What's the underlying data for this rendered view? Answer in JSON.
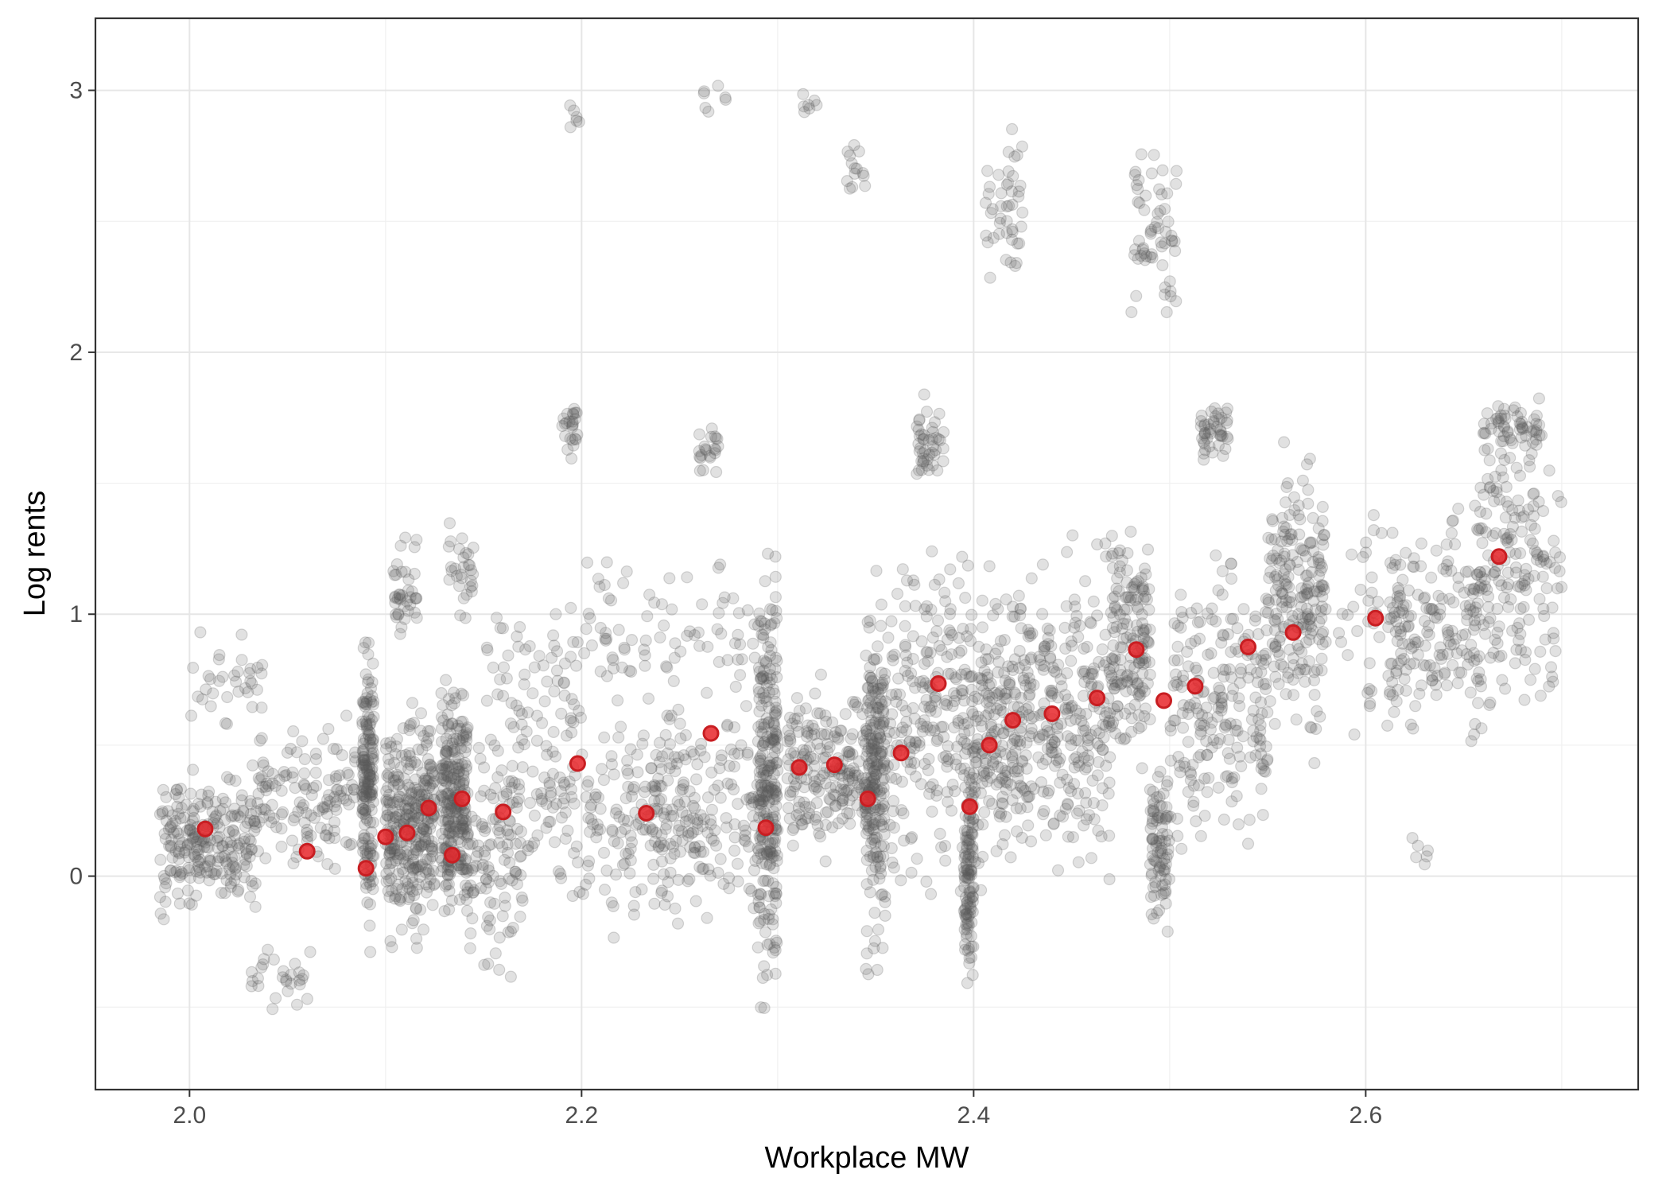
{
  "chart_data": {
    "type": "scatter",
    "title": "",
    "xlabel": "Workplace MW",
    "ylabel": "Log rents",
    "xlim": [
      1.952,
      2.739
    ],
    "ylim": [
      -0.815,
      3.275
    ],
    "x_ticks": [
      2.0,
      2.2,
      2.4,
      2.6
    ],
    "x_tick_labels": [
      "2.0",
      "2.2",
      "2.4",
      "2.6"
    ],
    "y_ticks": [
      0,
      1,
      2,
      3
    ],
    "y_tick_labels": [
      "0",
      "1",
      "2",
      "3"
    ],
    "grid": true,
    "theme": "bw",
    "series": [
      {
        "kind": "raw observations",
        "color": "#595959",
        "opacity": 0.18,
        "clusters": [
          {
            "x": [
              1.985,
              2.035
            ],
            "y": [
              -0.2,
              0.45
            ],
            "n": 240
          },
          {
            "x": [
              2.0,
              2.04
            ],
            "y": [
              0.5,
              1.0
            ],
            "n": 35
          },
          {
            "x": [
              2.035,
              2.085
            ],
            "y": [
              -0.05,
              0.65
            ],
            "n": 130
          },
          {
            "x": [
              2.03,
              2.065
            ],
            "y": [
              -0.55,
              -0.2
            ],
            "n": 28
          },
          {
            "x": [
              2.088,
              2.094
            ],
            "y": [
              -0.4,
              1.1
            ],
            "n": 180
          },
          {
            "x": [
              2.1,
              2.125
            ],
            "y": [
              -0.35,
              0.75
            ],
            "n": 320
          },
          {
            "x": [
              2.104,
              2.118
            ],
            "y": [
              0.8,
              1.4
            ],
            "n": 40
          },
          {
            "x": [
              2.128,
              2.142
            ],
            "y": [
              -0.3,
              0.9
            ],
            "n": 260
          },
          {
            "x": [
              2.132,
              2.145
            ],
            "y": [
              0.9,
              1.42
            ],
            "n": 30
          },
          {
            "x": [
              2.14,
              2.17
            ],
            "y": [
              -0.45,
              0.6
            ],
            "n": 110
          },
          {
            "x": [
              2.15,
              2.2
            ],
            "y": [
              0.3,
              1.2
            ],
            "n": 70
          },
          {
            "x": [
              2.16,
              2.22
            ],
            "y": [
              -0.4,
              0.8
            ],
            "n": 110
          },
          {
            "x": [
              2.19,
              2.198
            ],
            "y": [
              1.55,
              1.9
            ],
            "n": 25
          },
          {
            "x": [
              2.194,
              2.2
            ],
            "y": [
              2.75,
              3.0
            ],
            "n": 6
          },
          {
            "x": [
              2.22,
              2.26
            ],
            "y": [
              -0.3,
              0.75
            ],
            "n": 160
          },
          {
            "x": [
              2.2,
              2.3
            ],
            "y": [
              0.5,
              1.3
            ],
            "n": 90
          },
          {
            "x": [
              2.26,
              2.27
            ],
            "y": [
              1.45,
              1.8
            ],
            "n": 22
          },
          {
            "x": [
              2.262,
              2.275
            ],
            "y": [
              2.85,
              3.07
            ],
            "n": 7
          },
          {
            "x": [
              2.26,
              2.29
            ],
            "y": [
              -0.25,
              0.7
            ],
            "n": 80
          },
          {
            "x": [
              2.29,
              2.3
            ],
            "y": [
              -0.65,
              1.4
            ],
            "n": 260
          },
          {
            "x": [
              2.305,
              2.345
            ],
            "y": [
              0.0,
              0.8
            ],
            "n": 200
          },
          {
            "x": [
              2.31,
              2.32
            ],
            "y": [
              2.85,
              3.06
            ],
            "n": 7
          },
          {
            "x": [
              2.335,
              2.345
            ],
            "y": [
              2.55,
              2.87
            ],
            "n": 14
          },
          {
            "x": [
              2.345,
              2.355
            ],
            "y": [
              -0.55,
              1.3
            ],
            "n": 230
          },
          {
            "x": [
              2.355,
              2.4
            ],
            "y": [
              -0.3,
              1.5
            ],
            "n": 230
          },
          {
            "x": [
              2.37,
              2.385
            ],
            "y": [
              1.45,
              1.85
            ],
            "n": 45
          },
          {
            "x": [
              2.395,
              2.4
            ],
            "y": [
              -0.5,
              0.6
            ],
            "n": 120
          },
          {
            "x": [
              2.4,
              2.43
            ],
            "y": [
              -0.2,
              1.3
            ],
            "n": 230
          },
          {
            "x": [
              2.405,
              2.425
            ],
            "y": [
              2.2,
              2.9
            ],
            "n": 45
          },
          {
            "x": [
              2.43,
              2.47
            ],
            "y": [
              -0.15,
              1.4
            ],
            "n": 220
          },
          {
            "x": [
              2.47,
              2.49
            ],
            "y": [
              0.3,
              1.5
            ],
            "n": 160
          },
          {
            "x": [
              2.48,
              2.505
            ],
            "y": [
              2.0,
              2.9
            ],
            "n": 60
          },
          {
            "x": [
              2.49,
              2.5
            ],
            "y": [
              -0.35,
              0.5
            ],
            "n": 90
          },
          {
            "x": [
              2.5,
              2.55
            ],
            "y": [
              0.0,
              1.4
            ],
            "n": 220
          },
          {
            "x": [
              2.515,
              2.53
            ],
            "y": [
              1.55,
              1.85
            ],
            "n": 45
          },
          {
            "x": [
              2.55,
              2.58
            ],
            "y": [
              0.4,
              1.7
            ],
            "n": 210
          },
          {
            "x": [
              2.585,
              2.62
            ],
            "y": [
              0.4,
              1.6
            ],
            "n": 45
          },
          {
            "x": [
              2.61,
              2.66
            ],
            "y": [
              0.4,
              1.5
            ],
            "n": 170
          },
          {
            "x": [
              2.62,
              2.632
            ],
            "y": [
              -0.02,
              0.22
            ],
            "n": 6
          },
          {
            "x": [
              2.655,
              2.7
            ],
            "y": [
              0.5,
              1.85
            ],
            "n": 180
          },
          {
            "x": [
              2.66,
              2.69
            ],
            "y": [
              1.55,
              1.85
            ],
            "n": 60
          }
        ]
      },
      {
        "kind": "binned means",
        "color": "#e8262a",
        "x": [
          2.008,
          2.06,
          2.09,
          2.1,
          2.111,
          2.122,
          2.134,
          2.139,
          2.16,
          2.198,
          2.233,
          2.266,
          2.294,
          2.311,
          2.329,
          2.346,
          2.363,
          2.382,
          2.398,
          2.408,
          2.42,
          2.44,
          2.463,
          2.483,
          2.497,
          2.513,
          2.54,
          2.563,
          2.605,
          2.668
        ],
        "y": [
          0.18,
          0.095,
          0.03,
          0.15,
          0.165,
          0.26,
          0.08,
          0.295,
          0.245,
          0.43,
          0.24,
          0.545,
          0.185,
          0.415,
          0.425,
          0.295,
          0.47,
          0.735,
          0.265,
          0.5,
          0.595,
          0.62,
          0.68,
          0.865,
          0.67,
          0.725,
          0.875,
          0.93,
          0.985,
          1.22
        ]
      }
    ]
  }
}
